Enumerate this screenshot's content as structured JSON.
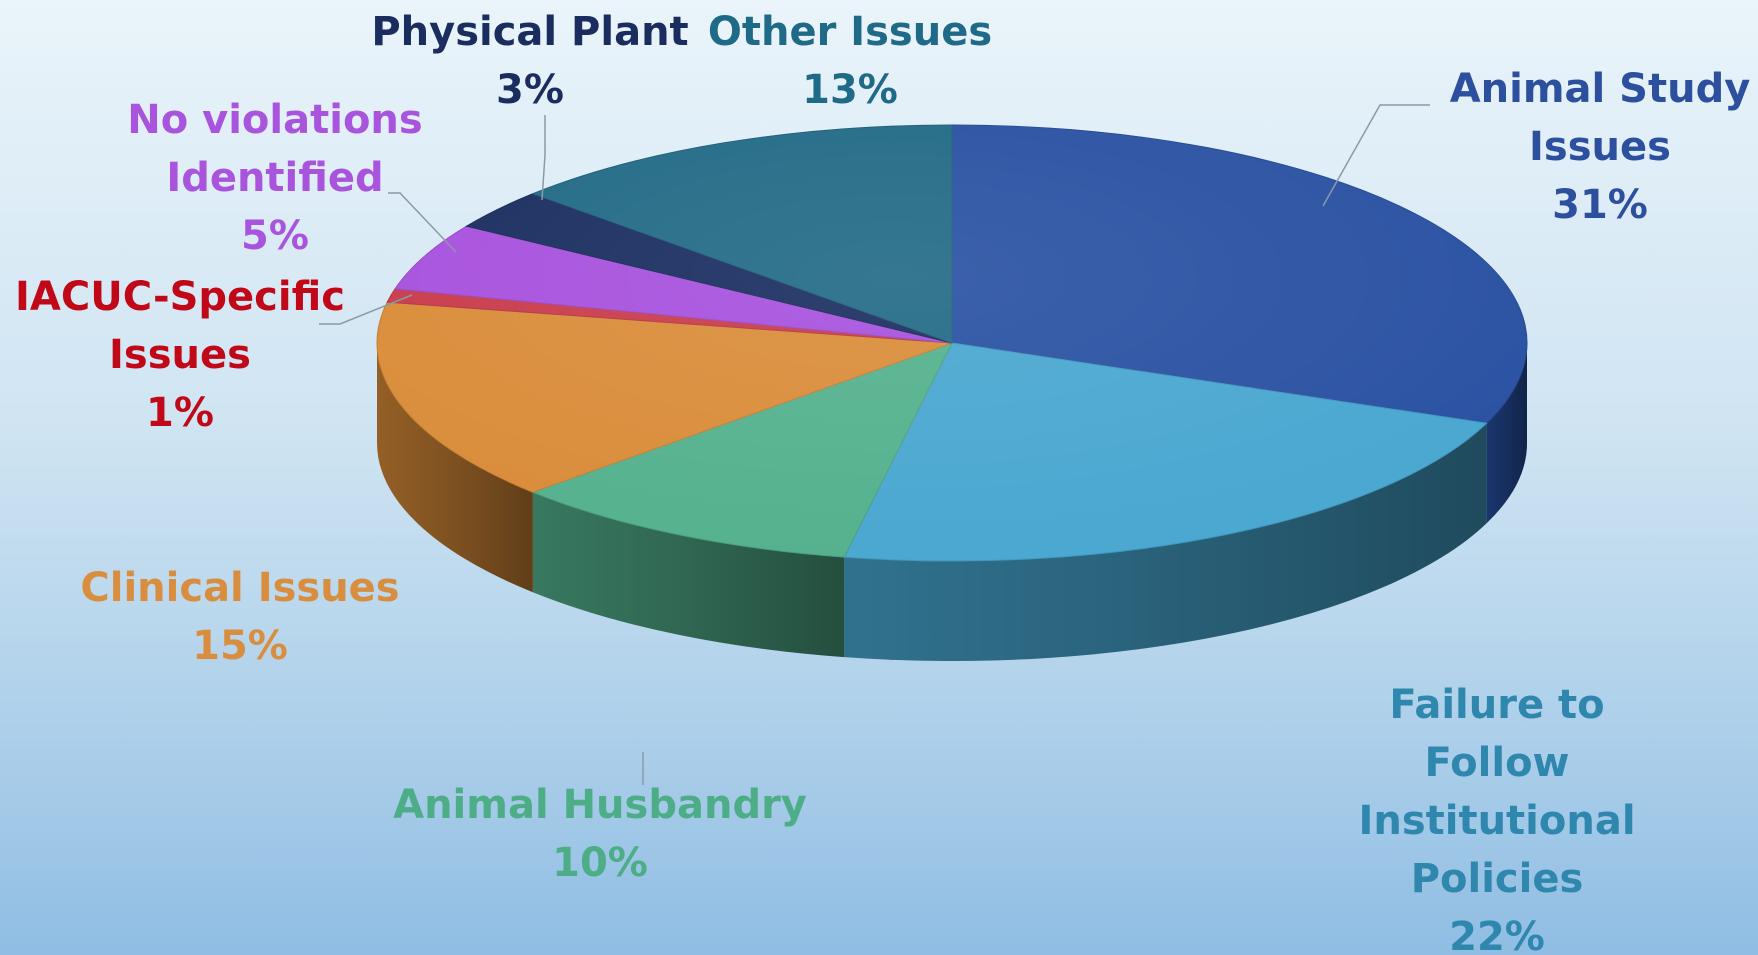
{
  "chart_data": {
    "type": "pie",
    "style": "3d",
    "title": "",
    "slices": [
      {
        "label_lines": [
          "Animal Study",
          "Issues"
        ],
        "percent_label": "31%",
        "value": 31,
        "color": "#274fa1",
        "label_color": "#2c4f9e"
      },
      {
        "label_lines": [
          "Failure to",
          "Follow",
          "Institutional",
          "Policies"
        ],
        "percent_label": "22%",
        "value": 22,
        "color": "#47a6d0",
        "label_color": "#2f87ae"
      },
      {
        "label_lines": [
          "Animal Husbandry"
        ],
        "percent_label": "10%",
        "value": 10,
        "color": "#52b08c",
        "label_color": "#4cad86"
      },
      {
        "label_lines": [
          "Clinical Issues"
        ],
        "percent_label": "15%",
        "value": 15,
        "color": "#d98b37",
        "label_color": "#d98e3f"
      },
      {
        "label_lines": [
          "IACUC-Specific",
          "Issues"
        ],
        "percent_label": "1%",
        "value": 1,
        "color": "#c8394a",
        "label_color": "#c00818"
      },
      {
        "label_lines": [
          "No violations",
          "Identified"
        ],
        "percent_label": "5%",
        "value": 5,
        "color": "#a64fdd",
        "label_color": "#a954dd"
      },
      {
        "label_lines": [
          "Physical Plant"
        ],
        "percent_label": "3%",
        "value": 3,
        "color": "#172b5e",
        "label_color": "#1b2c5e"
      },
      {
        "label_lines": [
          "Other Issues"
        ],
        "percent_label": "13%",
        "value": 13,
        "color": "#1f6884",
        "label_color": "#1f6a87"
      }
    ]
  }
}
